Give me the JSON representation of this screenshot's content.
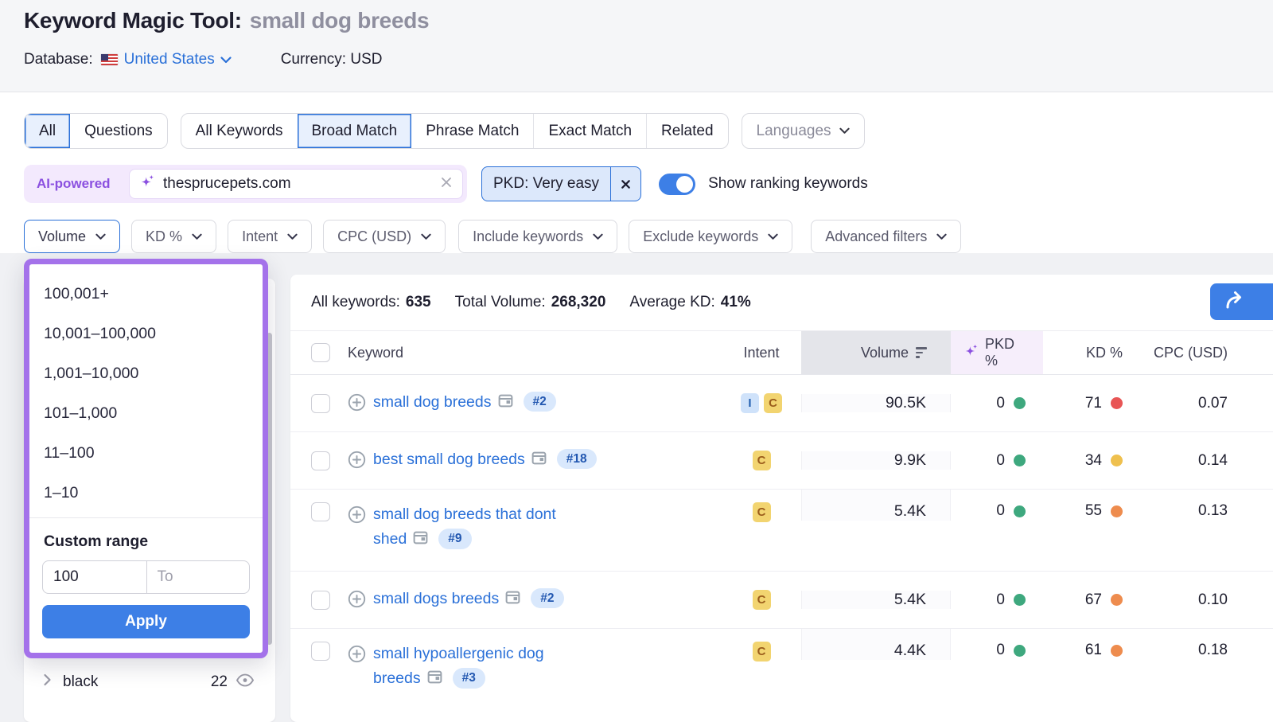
{
  "colors": {
    "accent_blue": "#3d7fe6",
    "link_blue": "#2a70d8",
    "ai_purple": "#8b50e0",
    "dropdown_border_purple": "#a472ea",
    "green_dot": "#3ea87e"
  },
  "header": {
    "title": "Keyword Magic Tool:",
    "query": "small dog breeds",
    "database_label": "Database:",
    "database_value": "United States",
    "currency_label": "Currency:",
    "currency_value": "USD"
  },
  "tabs": {
    "group1": [
      "All",
      "Questions"
    ],
    "group2": [
      "All Keywords",
      "Broad Match",
      "Phrase Match",
      "Exact Match",
      "Related"
    ],
    "selected1": "All",
    "selected2": "Broad Match",
    "languages": "Languages"
  },
  "ai_bar": {
    "badge": "AI-powered",
    "input_value": "thesprucepets.com",
    "pkd_filter": "PKD: Very easy",
    "toggle_label": "Show ranking keywords",
    "toggle_on": true
  },
  "filter_buttons": [
    "Volume",
    "KD %",
    "Intent",
    "CPC (USD)",
    "Include keywords",
    "Exclude keywords",
    "Advanced filters"
  ],
  "volume_dropdown": {
    "options": [
      "100,001+",
      "10,001–100,000",
      "1,001–10,000",
      "101–1,000",
      "11–100",
      "1–10"
    ],
    "custom_range_label": "Custom range",
    "from_value": "100",
    "to_placeholder": "To",
    "apply_label": "Apply"
  },
  "sidebar": {
    "group_label": "black",
    "group_count": "22"
  },
  "summary": {
    "all_keywords_label": "All keywords:",
    "all_keywords": "635",
    "total_volume_label": "Total Volume:",
    "total_volume": "268,320",
    "avg_kd_label": "Average KD:",
    "avg_kd": "41%"
  },
  "table": {
    "headers": {
      "keyword": "Keyword",
      "intent": "Intent",
      "volume": "Volume",
      "pkd": "PKD %",
      "kd": "KD %",
      "cpc": "CPC (USD)"
    },
    "intent_styles": {
      "I": {
        "bg": "#cfe2fa",
        "fg": "#2561b0"
      },
      "C": {
        "bg": "#f2d470",
        "fg": "#9a5c1b"
      }
    },
    "pkd_dot_color": "#3ea87e",
    "rows": [
      {
        "keyword_lines": [
          "small dog breeds"
        ],
        "position": "#2",
        "intents": [
          "I",
          "C"
        ],
        "volume": "90.5K",
        "pkd": "0",
        "kd": "71",
        "kd_dot": "#e85555",
        "cpc": "0.07"
      },
      {
        "keyword_lines": [
          "best small dog breeds"
        ],
        "position": "#18",
        "intents": [
          "C"
        ],
        "volume": "9.9K",
        "pkd": "0",
        "kd": "34",
        "kd_dot": "#efc04e",
        "cpc": "0.14"
      },
      {
        "keyword_lines": [
          "small dog breeds that dont",
          "shed"
        ],
        "position": "#9",
        "intents": [
          "C"
        ],
        "volume": "5.4K",
        "pkd": "0",
        "kd": "55",
        "kd_dot": "#ee8c4e",
        "cpc": "0.13"
      },
      {
        "keyword_lines": [
          "small dogs breeds"
        ],
        "position": "#2",
        "intents": [
          "C"
        ],
        "volume": "5.4K",
        "pkd": "0",
        "kd": "67",
        "kd_dot": "#ee8c4e",
        "cpc": "0.10"
      },
      {
        "keyword_lines": [
          "small hypoallergenic dog",
          "breeds"
        ],
        "position": "#3",
        "intents": [
          "C"
        ],
        "volume": "4.4K",
        "pkd": "0",
        "kd": "61",
        "kd_dot": "#ee8c4e",
        "cpc": "0.18"
      }
    ]
  }
}
